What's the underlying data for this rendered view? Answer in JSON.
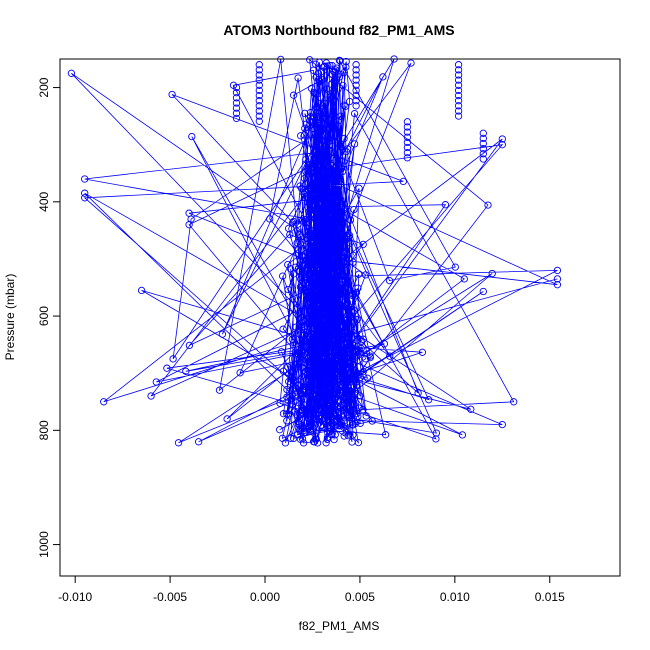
{
  "chart_data": {
    "type": "scatter",
    "title": "ATOM3 Northbound f82_PM1_AMS",
    "xlabel": "f82_PM1_AMS",
    "ylabel": "Pressure (mbar)",
    "xlim": [
      -0.0108,
      0.0187
    ],
    "ylim": [
      1055,
      150
    ],
    "y_reversed": true,
    "grid": false,
    "x_ticks": [
      -0.01,
      -0.005,
      0.0,
      0.005,
      0.01,
      0.015
    ],
    "x_tick_labels": [
      "-0.010",
      "-0.005",
      "0.000",
      "0.005",
      "0.010",
      "0.015"
    ],
    "y_ticks": [
      200,
      400,
      600,
      800,
      1000
    ],
    "y_tick_labels": [
      "200",
      "400",
      "600",
      "800",
      "1000"
    ],
    "series": [
      {
        "marker": "open-circle",
        "line": true,
        "color": "#0000ff",
        "points": [
          [
            -0.0102,
            175
          ],
          [
            -0.0095,
            360
          ],
          [
            -0.0095,
            385
          ],
          [
            -0.0095,
            393
          ],
          [
            0.0068,
            150
          ],
          [
            0.0125,
            290
          ],
          [
            0.0125,
            300
          ],
          [
            0.0095,
            405
          ],
          [
            -0.004,
            420
          ],
          [
            -0.004,
            440
          ],
          [
            0.0022,
            520
          ],
          [
            0.0154,
            520
          ],
          [
            0.0154,
            535
          ],
          [
            0.0154,
            545
          ],
          [
            -0.0065,
            555
          ],
          [
            0.0105,
            535
          ],
          [
            -0.0085,
            750
          ],
          [
            0.0131,
            750
          ],
          [
            -0.006,
            740
          ],
          [
            0.0125,
            790
          ],
          [
            -0.002,
            780
          ],
          [
            0.0104,
            808
          ],
          [
            -0.0035,
            820
          ],
          [
            0.009,
            815
          ]
        ]
      }
    ]
  }
}
